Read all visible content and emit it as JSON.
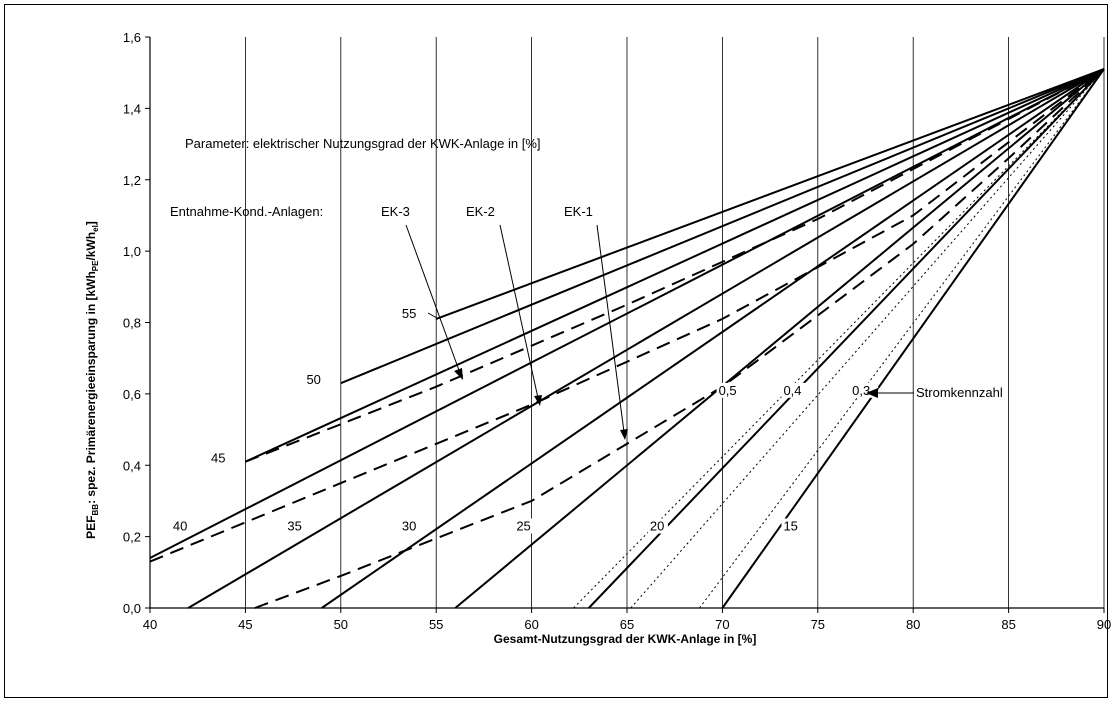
{
  "chart_data": {
    "type": "line",
    "xlabel": "Gesamt-Nutzungsgrad der KWK-Anlage in [%]",
    "ylabel": {
      "p1": "PEF",
      "p1sub": "BB",
      "p2": ": spez. Primärenergieeinsparung in [kWh",
      "p2sub": "PE",
      "p3": "/kWh",
      "p3sub": "el",
      "p4": "]"
    },
    "xlim": [
      40,
      90
    ],
    "ylim": [
      0,
      1.6
    ],
    "xticks": [
      "40",
      "45",
      "50",
      "55",
      "60",
      "65",
      "70",
      "75",
      "80",
      "85",
      "90"
    ],
    "yticks": [
      "0,0",
      "0,2",
      "0,4",
      "0,6",
      "0,8",
      "1,0",
      "1,2",
      "1,4",
      "1,6"
    ],
    "grid": "vertical",
    "annotations": {
      "parameter": "Parameter: elektrischer Nutzungsgrad der KWK-Anlage in [%]",
      "entnahme": "Entnahme-Kond.-Anlagen:",
      "ek3": "EK-3",
      "ek2": "EK-2",
      "ek1": "EK-1",
      "stromkennzahl": "Stromkennzahl"
    },
    "series": [
      {
        "label": "55",
        "style": "solid",
        "points": [
          [
            55,
            0.81
          ],
          [
            90,
            1.51
          ]
        ]
      },
      {
        "label": "50",
        "style": "solid",
        "points": [
          [
            50,
            0.63
          ],
          [
            90,
            1.51
          ]
        ]
      },
      {
        "label": "45",
        "style": "solid",
        "points": [
          [
            45,
            0.41
          ],
          [
            90,
            1.51
          ]
        ]
      },
      {
        "label": "40",
        "style": "solid",
        "points": [
          [
            40,
            0.14
          ],
          [
            90,
            1.51
          ]
        ]
      },
      {
        "label": "35",
        "style": "solid",
        "points": [
          [
            42,
            0.0
          ],
          [
            90,
            1.51
          ]
        ]
      },
      {
        "label": "30",
        "style": "solid",
        "points": [
          [
            49,
            0.0
          ],
          [
            90,
            1.51
          ]
        ]
      },
      {
        "label": "25",
        "style": "solid",
        "points": [
          [
            56,
            0.0
          ],
          [
            90,
            1.51
          ]
        ]
      },
      {
        "label": "20",
        "style": "solid",
        "points": [
          [
            63,
            0.0
          ],
          [
            90,
            1.51
          ]
        ]
      },
      {
        "label": "15",
        "style": "solid",
        "points": [
          [
            70,
            0.0
          ],
          [
            90,
            1.51
          ]
        ]
      },
      {
        "label": "EK-3",
        "style": "dashed",
        "points": [
          [
            45,
            0.41
          ],
          [
            55,
            0.62
          ],
          [
            65,
            0.85
          ],
          [
            75,
            1.09
          ],
          [
            80,
            1.23
          ],
          [
            90,
            1.51
          ]
        ]
      },
      {
        "label": "EK-2",
        "style": "dashed",
        "points": [
          [
            40,
            0.13
          ],
          [
            50,
            0.35
          ],
          [
            60,
            0.57
          ],
          [
            70,
            0.81
          ],
          [
            80,
            1.1
          ],
          [
            90,
            1.51
          ]
        ]
      },
      {
        "label": "EK-1",
        "style": "dashed",
        "points": [
          [
            45.5,
            0.0
          ],
          [
            50,
            0.09
          ],
          [
            60,
            0.3
          ],
          [
            70,
            0.62
          ],
          [
            75,
            0.82
          ],
          [
            80,
            1.02
          ],
          [
            85,
            1.26
          ],
          [
            90,
            1.51
          ]
        ]
      },
      {
        "label": "0,5",
        "style": "dotted",
        "points": [
          [
            62.2,
            0.0
          ],
          [
            90,
            1.51
          ]
        ]
      },
      {
        "label": "0,4",
        "style": "dotted",
        "points": [
          [
            65.2,
            0.0
          ],
          [
            90,
            1.51
          ]
        ]
      },
      {
        "label": "0,3",
        "style": "dotted",
        "points": [
          [
            68.8,
            0.0
          ],
          [
            90,
            1.51
          ]
        ]
      }
    ],
    "curve_labels": [
      {
        "text": "55",
        "x": 53.2,
        "y": 0.815
      },
      {
        "text": "50",
        "x": 48.2,
        "y": 0.63
      },
      {
        "text": "45",
        "x": 43.2,
        "y": 0.41
      },
      {
        "text": "40",
        "x": 41.2,
        "y": 0.22
      },
      {
        "text": "35",
        "x": 47.2,
        "y": 0.22
      },
      {
        "text": "30",
        "x": 53.2,
        "y": 0.22
      },
      {
        "text": "25",
        "x": 59.2,
        "y": 0.22
      },
      {
        "text": "20",
        "x": 66.2,
        "y": 0.22
      },
      {
        "text": "15",
        "x": 73.2,
        "y": 0.22
      },
      {
        "text": "0,5",
        "x": 69.8,
        "y": 0.6
      },
      {
        "text": "0,4",
        "x": 73.2,
        "y": 0.6
      },
      {
        "text": "0,3",
        "x": 76.8,
        "y": 0.6
      }
    ]
  }
}
